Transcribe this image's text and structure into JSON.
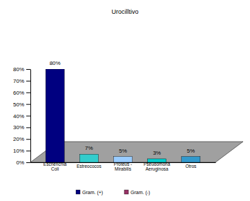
{
  "chart_data": {
    "type": "bar",
    "title": "Urocilltivo",
    "categories": [
      "Escherichia Coli",
      "Estreococos",
      "Proteus - Mirabilis",
      "Pseudomona Aeruginosa",
      "Otros"
    ],
    "series": [
      {
        "name": "Gram. (+)",
        "color": "#000080",
        "values": [
          80,
          null,
          null,
          null,
          null
        ],
        "value_labels": [
          "80%",
          null,
          null,
          null,
          null
        ]
      },
      {
        "name": "Gram. (-)",
        "color": "#993366",
        "values": [
          null,
          7,
          5,
          3,
          5
        ],
        "colors": [
          null,
          "#33cccc",
          "#99ccff",
          "#00cccc",
          "#3399cc"
        ],
        "value_labels": [
          null,
          "7%",
          "5%",
          "3%",
          "5%"
        ]
      }
    ],
    "ylim": [
      0,
      80
    ],
    "yticks": [
      {
        "value": 0,
        "label": "0%"
      },
      {
        "value": 10,
        "label": "10%"
      },
      {
        "value": 20,
        "label": "20%"
      },
      {
        "value": 30,
        "label": "30%"
      },
      {
        "value": 40,
        "label": "40%"
      },
      {
        "value": 50,
        "label": "50%"
      },
      {
        "value": 60,
        "label": "60%"
      },
      {
        "value": 70,
        "label": "70%"
      },
      {
        "value": 80,
        "label": "80%"
      }
    ],
    "grid": false,
    "data_labels": true,
    "legend": "bottom"
  }
}
